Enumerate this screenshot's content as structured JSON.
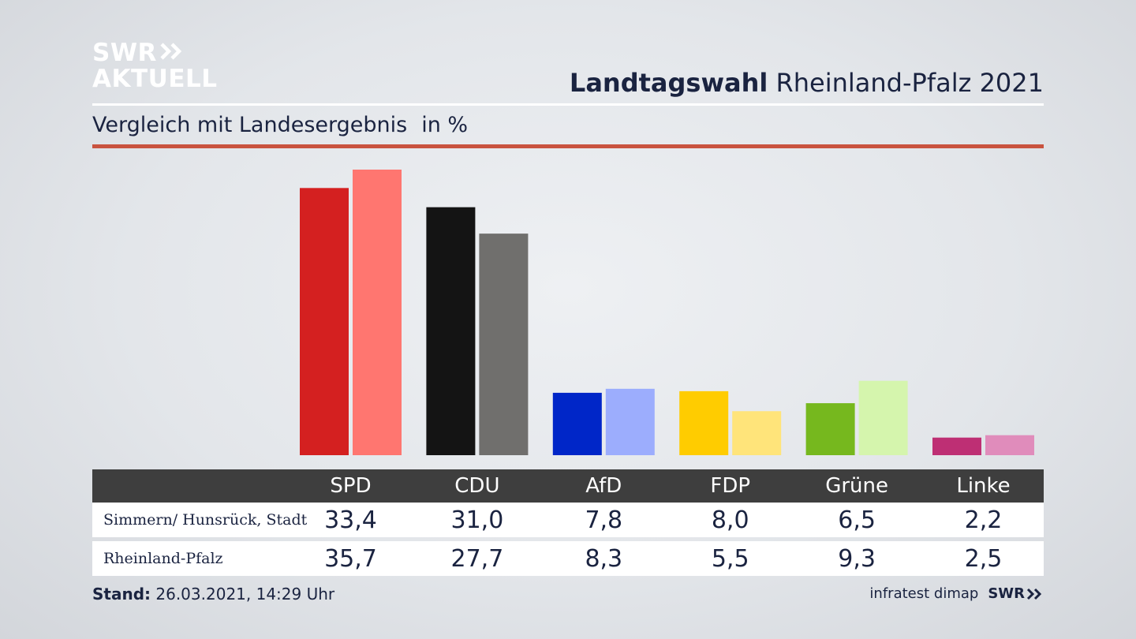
{
  "brand": {
    "logo_line1": "SWR",
    "logo_line2": "AKTUELL"
  },
  "header": {
    "title_bold": "Landtagswahl",
    "title_rest": "Rheinland-Pfalz 2021",
    "subtitle": "Vergleich mit Landesergebnis",
    "subtitle_unit": "in %"
  },
  "colors": {
    "accent_rule": "#c9533f",
    "SPD": [
      "#d42020",
      "#ff7670"
    ],
    "CDU": [
      "#141414",
      "#706f6d"
    ],
    "AfD": [
      "#0026c8",
      "#9cadfd"
    ],
    "FDP": [
      "#ffcc00",
      "#ffe47a"
    ],
    "Grüne": [
      "#76b81e",
      "#d5f5ad"
    ],
    "Linke": [
      "#be2f74",
      "#e08cbb"
    ]
  },
  "chart_data": {
    "type": "bar",
    "categories": [
      "SPD",
      "CDU",
      "AfD",
      "FDP",
      "Grüne",
      "Linke"
    ],
    "series": [
      {
        "name": "Simmern/ Hunsrück, Stadt",
        "values": [
          33.4,
          31.0,
          7.8,
          8.0,
          6.5,
          2.2
        ]
      },
      {
        "name": "Rheinland-Pfalz",
        "values": [
          35.7,
          27.7,
          8.3,
          5.5,
          9.3,
          2.5
        ]
      }
    ],
    "title": "Landtagswahl Rheinland-Pfalz 2021",
    "subtitle": "Vergleich mit Landesergebnis in %",
    "ylim": [
      0,
      35.7
    ],
    "grid": false,
    "legend": "table below chart"
  },
  "table": {
    "headers": [
      "SPD",
      "CDU",
      "AfD",
      "FDP",
      "Grüne",
      "Linke"
    ],
    "rows": [
      {
        "label": "Simmern/ Hunsrück, Stadt",
        "values": [
          "33,4",
          "31,0",
          "7,8",
          "8,0",
          "6,5",
          "2,2"
        ]
      },
      {
        "label": "Rheinland-Pfalz",
        "values": [
          "35,7",
          "27,7",
          "8,3",
          "5,5",
          "9,3",
          "2,5"
        ]
      }
    ]
  },
  "footer": {
    "stand_label": "Stand:",
    "stand_value": "26.03.2021, 14:29 Uhr",
    "source": "infratest dimap",
    "source_brand": "SWR"
  }
}
